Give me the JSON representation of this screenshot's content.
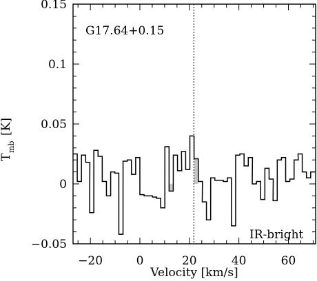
{
  "chart_data": {
    "type": "line",
    "subtype": "step-spectrum",
    "source_label": "G17.64+0.15",
    "annotation": "IR-bright",
    "xlabel": "Velocity [km/s]",
    "ylabel_main": "T",
    "ylabel_sub": "mb",
    "ylabel_unit": "[K]",
    "xlim": [
      -27,
      71
    ],
    "ylim": [
      -0.05,
      0.15
    ],
    "xticks": [
      -20,
      0,
      20,
      40,
      60
    ],
    "xtick_labels": [
      "−20",
      "0",
      "20",
      "40",
      "60"
    ],
    "yticks": [
      -0.05,
      0,
      0.05,
      0.1,
      0.15
    ],
    "ytick_labels": [
      "−0.05",
      "0",
      "0.05",
      "0.1",
      "0.15"
    ],
    "reference_line_x": 21.8,
    "bin_width": 1.69,
    "series": [
      {
        "x": [
          -27.0,
          -25.3,
          -23.6,
          -21.9,
          -20.3,
          -18.6,
          -16.9,
          -15.2,
          -13.5,
          -11.8,
          -10.2,
          -8.5,
          -6.8,
          -5.1,
          -3.4,
          -1.7,
          0.0,
          1.7,
          3.4,
          5.1,
          6.7,
          8.4,
          10.1,
          11.8,
          13.5,
          15.2,
          16.8,
          18.5,
          20.2,
          21.9,
          23.6,
          25.2,
          26.9,
          28.6,
          30.3,
          32.0,
          33.7,
          35.3,
          37.0,
          38.7,
          40.4,
          42.1,
          43.8,
          45.4,
          47.1,
          48.8,
          50.5,
          52.2,
          53.8,
          55.5,
          57.2,
          58.9,
          60.6,
          62.3,
          63.9,
          65.6,
          67.3,
          69.0
        ],
        "y": [
          0.025,
          0.002,
          0.024,
          0.018,
          -0.024,
          0.028,
          0.023,
          0.002,
          -0.01,
          0.01,
          0.009,
          -0.042,
          0.019,
          0.02,
          0.008,
          0.022,
          -0.009,
          -0.01,
          -0.01,
          -0.011,
          -0.012,
          -0.02,
          0.031,
          -0.006,
          0.024,
          0.011,
          0.027,
          0.012,
          0.04,
          0.021,
          0.002,
          -0.015,
          -0.03,
          0.005,
          0.003,
          0.003,
          0.002,
          0.005,
          -0.035,
          0.024,
          0.025,
          0.015,
          0.022,
          0.0,
          0.002,
          -0.013,
          0.013,
          0.004,
          -0.014,
          0.02,
          0.022,
          0.002,
          0.004,
          0.02,
          0.025,
          0.01,
          0.005,
          0.01
        ]
      }
    ],
    "shaded_bins_x": [
      11.8,
      21.9
    ]
  }
}
